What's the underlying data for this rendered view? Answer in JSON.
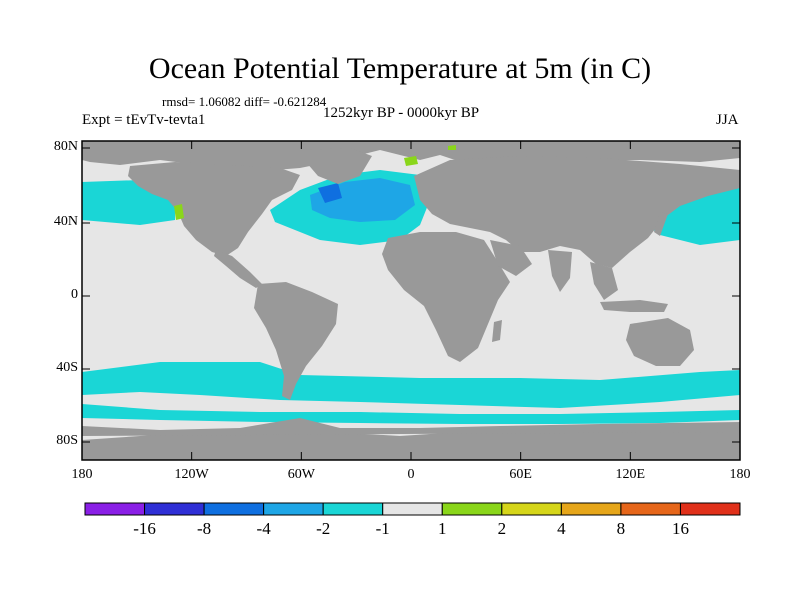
{
  "title": "Ocean Potential Temperature at 5m (in C)",
  "stats": "rmsd= 1.06082 diff= -0.621284",
  "left_label": "Expt = tEvTv-tevta1",
  "center_label": "1252kyr BP - 0000kyr BP",
  "right_label": "JJA",
  "y_ticks": [
    "80N",
    "40N",
    "0",
    "40S",
    "80S"
  ],
  "x_ticks": [
    "180",
    "120W",
    "60W",
    "0",
    "60E",
    "120E",
    "180"
  ],
  "colorbar": {
    "labels": [
      "-16",
      "-8",
      "-4",
      "-2",
      "-1",
      "1",
      "2",
      "4",
      "8",
      "16"
    ],
    "colors": [
      "#8a1fe6",
      "#2f2fd6",
      "#0f6fe0",
      "#1ea6e6",
      "#1ad6d6",
      "#e6e6e6",
      "#8ad61a",
      "#d6d61a",
      "#e6a61a",
      "#e6661a",
      "#e0301a"
    ]
  },
  "map_colors": {
    "land": "#999999",
    "ocean": "#e6e6e6",
    "missing": "#999999"
  }
}
